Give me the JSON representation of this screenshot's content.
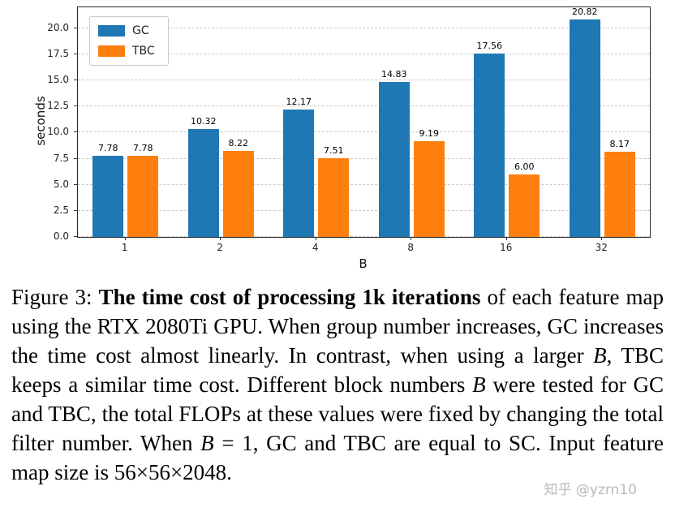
{
  "chart_data": {
    "type": "bar",
    "title": "",
    "categories": [
      "1",
      "2",
      "4",
      "8",
      "16",
      "32"
    ],
    "series": [
      {
        "name": "GC",
        "color": "#1f77b4",
        "values": [
          7.78,
          10.32,
          12.17,
          14.83,
          17.56,
          20.82
        ]
      },
      {
        "name": "TBC",
        "color": "#ff7f0e",
        "values": [
          7.78,
          8.22,
          7.51,
          9.19,
          6.0,
          8.17
        ]
      }
    ],
    "xlabel": "B",
    "ylabel": "seconds",
    "ylim": [
      0,
      22
    ],
    "yticks": [
      0.0,
      2.5,
      5.0,
      7.5,
      10.0,
      12.5,
      15.0,
      17.5,
      20.0
    ],
    "grid": "horizontal-dashed",
    "legend_position": "upper-left",
    "bar_labels": true
  },
  "caption": {
    "segments": [
      {
        "text": "Figure 3: ",
        "style": "normal"
      },
      {
        "text": "The time cost of processing 1k iterations",
        "style": "bold"
      },
      {
        "text": " of each feature map using the RTX 2080Ti GPU. When group number increases, GC increases the time cost almost linearly. In contrast, when using a larger ",
        "style": "normal"
      },
      {
        "text": "B",
        "style": "italic"
      },
      {
        "text": ", TBC keeps a similar time cost. Different block numbers ",
        "style": "normal"
      },
      {
        "text": "B",
        "style": "italic"
      },
      {
        "text": " were tested for GC and TBC, the total FLOPs at these values were fixed by changing the total filter number. When ",
        "style": "normal"
      },
      {
        "text": "B",
        "style": "italic"
      },
      {
        "text": " = 1, GC and TBC are equal to SC. Input feature map size is 56×56×2048.",
        "style": "normal"
      }
    ]
  },
  "watermark": "知乎 @yzrn10"
}
